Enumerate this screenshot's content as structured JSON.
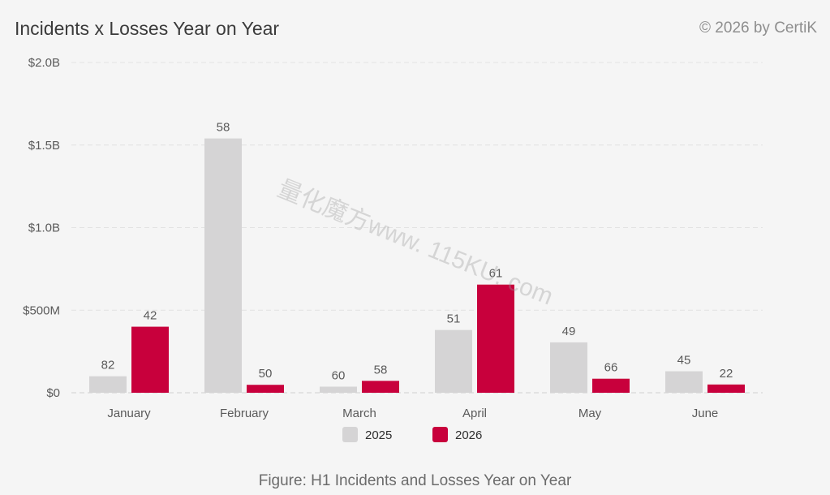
{
  "header": {
    "title": "Incidents x Losses Year on Year",
    "copyright": "© 2026 by CertiK"
  },
  "caption": "Figure: H1 Incidents and Losses Year on Year",
  "watermark": "量化魔方www. 115KU. com",
  "chart_data": {
    "type": "bar",
    "categories": [
      "January",
      "February",
      "March",
      "April",
      "May",
      "June"
    ],
    "series": [
      {
        "name": "2025",
        "color": "#d5d4d5",
        "values": [
          100000000,
          1540000000,
          37000000,
          380000000,
          305000000,
          130000000
        ],
        "labels": [
          "82",
          "58",
          "60",
          "51",
          "49",
          "45"
        ]
      },
      {
        "name": "2026",
        "color": "#c8003c",
        "values": [
          400000000,
          48000000,
          72000000,
          655000000,
          85000000,
          50000000
        ],
        "labels": [
          "42",
          "50",
          "58",
          "61",
          "66",
          "22"
        ]
      }
    ],
    "yticks": [
      0,
      500000000,
      1000000000,
      1500000000,
      2000000000
    ],
    "ytick_labels": [
      "$0",
      "$500M",
      "$1.0B",
      "$1.5B",
      "$2.0B"
    ],
    "ylim": [
      0,
      2000000000
    ],
    "grid": true,
    "legend_position": "bottom-center"
  }
}
